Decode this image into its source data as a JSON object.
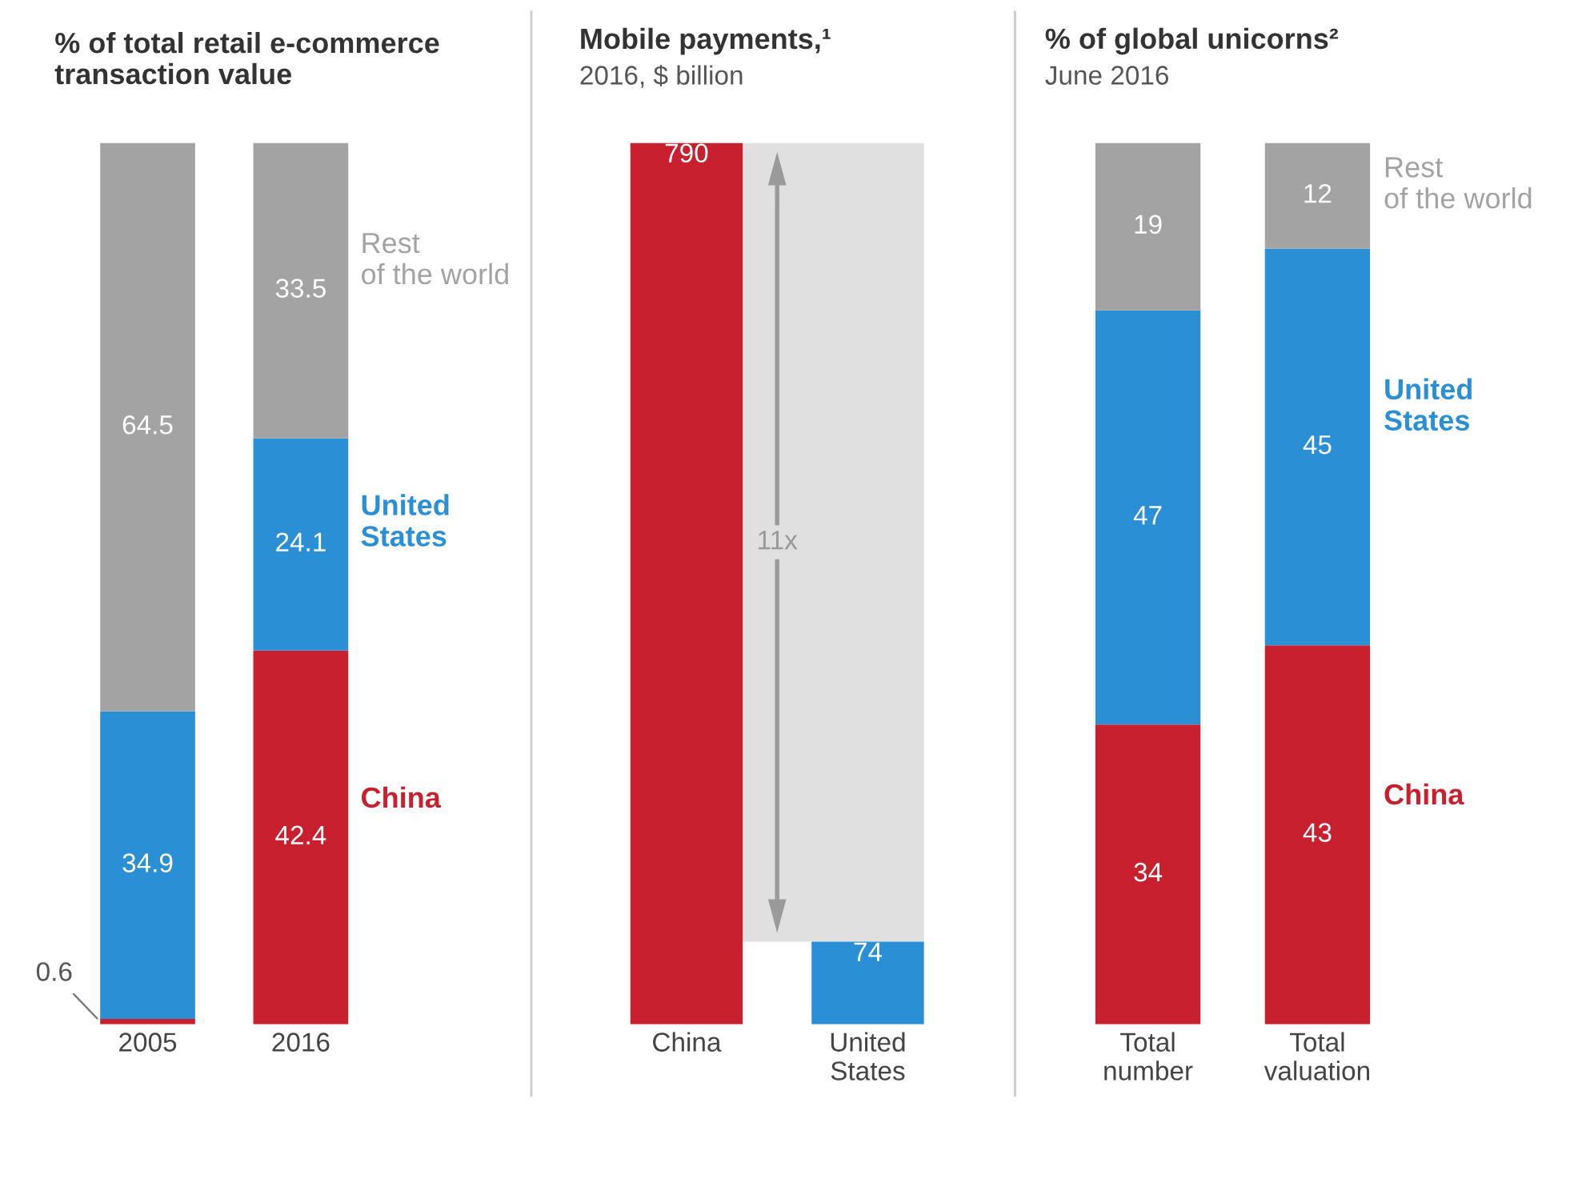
{
  "chart_data": [
    {
      "type": "bar",
      "title": "% of total retail e-commerce\ntransaction value",
      "stacked": true,
      "data_labels": true,
      "tick_labels": "x",
      "categories": [
        "2005",
        "2016"
      ],
      "series": [
        {
          "name": "China",
          "color": "#c8202f",
          "values": [
            0.6,
            42.4
          ]
        },
        {
          "name": "United States",
          "color": "#2b8fd6",
          "values": [
            34.9,
            24.1
          ]
        },
        {
          "name": "Rest of the world",
          "color": "#a3a3a3",
          "values": [
            64.5,
            33.5
          ]
        }
      ]
    },
    {
      "type": "bar",
      "title": "Mobile payments,¹",
      "subtitle": "2016, $ billion",
      "data_labels": true,
      "tick_labels": "x",
      "categories": [
        "China",
        "United States"
      ],
      "values": [
        790,
        74
      ],
      "colors": [
        "#c8202f",
        "#2b8fd6"
      ],
      "annotations": [
        "11x"
      ]
    },
    {
      "type": "bar",
      "title": "% of global unicorns²",
      "subtitle": "June 2016",
      "stacked": true,
      "data_labels": true,
      "tick_labels": "x",
      "categories": [
        "Total number",
        "Total valuation"
      ],
      "series": [
        {
          "name": "China",
          "color": "#c8202f",
          "values": [
            34,
            43
          ]
        },
        {
          "name": "United States",
          "color": "#2b8fd6",
          "values": [
            47,
            45
          ]
        },
        {
          "name": "Rest of the world",
          "color": "#a3a3a3",
          "values": [
            19,
            12
          ]
        }
      ]
    }
  ]
}
